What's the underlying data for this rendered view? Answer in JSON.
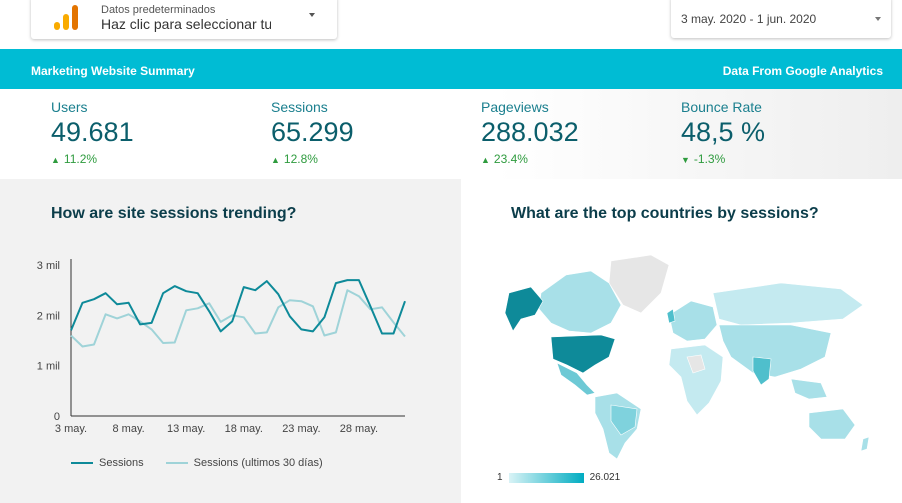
{
  "source_selector": {
    "small_label": "Datos predeterminados",
    "value": "Haz clic para seleccionar tu"
  },
  "date_range": {
    "value": "3 may. 2020 - 1 jun. 2020"
  },
  "header": {
    "title": "Marketing Website Summary",
    "source": "Data From Google Analytics",
    "color": "#00bcd4"
  },
  "kpis": [
    {
      "label": "Users",
      "value": "49.681",
      "delta": "11.2%",
      "direction": "up"
    },
    {
      "label": "Sessions",
      "value": "65.299",
      "delta": "12.8%",
      "direction": "up"
    },
    {
      "label": "Pageviews",
      "value": "288.032",
      "delta": "23.4%",
      "direction": "up"
    },
    {
      "label": "Bounce Rate",
      "value": "48,5 %",
      "delta": "-1.3%",
      "direction": "down"
    }
  ],
  "trend_panel": {
    "title": "How are site sessions trending?"
  },
  "map_panel": {
    "title": "What are the top countries by sessions?",
    "scale_min": "1",
    "scale_max": "26.021"
  },
  "chart_data": {
    "type": "line",
    "x_tick_labels": [
      "3 may.",
      "8 may.",
      "13 may.",
      "18 may.",
      "23 may.",
      "28 may."
    ],
    "y_tick_labels": [
      "0",
      "1 mil",
      "2 mil",
      "3 mil"
    ],
    "ylim": [
      0,
      3000
    ],
    "x_days": 29,
    "grid": false,
    "legend_position": "bottom",
    "series": [
      {
        "name": "Sessions",
        "color": "#0e8a99",
        "values": [
          1700,
          2250,
          2320,
          2440,
          2220,
          2250,
          1820,
          1850,
          2440,
          2580,
          2480,
          2440,
          2080,
          1680,
          1880,
          2560,
          2500,
          2680,
          2420,
          1980,
          1720,
          1680,
          1960,
          2640,
          2700,
          2700,
          2180,
          1640,
          1640,
          2280
        ]
      },
      {
        "name": "Sessions (ultimos 30 días)",
        "color": "#9fd3d8",
        "values": [
          1600,
          1380,
          1420,
          2020,
          1940,
          2020,
          1880,
          1720,
          1450,
          1460,
          2100,
          2140,
          2240,
          1870,
          2000,
          1960,
          1640,
          1660,
          2160,
          2300,
          2280,
          2180,
          1600,
          1660,
          2500,
          2380,
          2120,
          2160,
          1860,
          1580
        ]
      }
    ]
  },
  "map_legend_colors": {
    "low": "#d9f3f6",
    "high": "#00acc1",
    "top": "#0e8a99",
    "none": "#e6e6e6"
  }
}
